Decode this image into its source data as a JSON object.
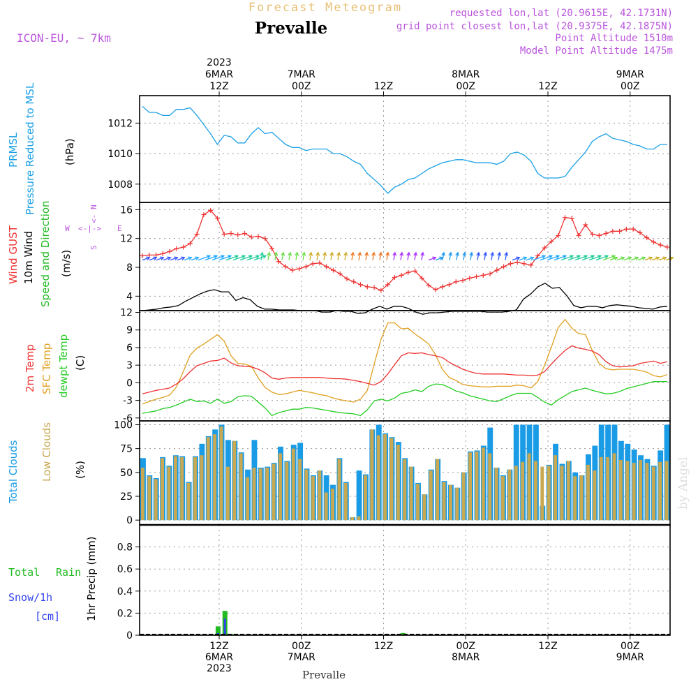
{
  "header": {
    "title_top": "Forecast Meteogram",
    "location": "Prevalle",
    "model": "ICON-EU, ~ 7km",
    "requested": "requested lon,lat (20.9615E, 42.1731N)",
    "grid_point": "grid point closest lon,lat (20.9375E, 42.1875N)",
    "point_altitude": "Point Altitude 1510m",
    "model_altitude": "Model Point Altitude 1475m",
    "footer_location": "Prevalle",
    "watermark": "by Angel"
  },
  "colors": {
    "prmsl": "#1aa0e6",
    "gust": "#ee3333",
    "wind": "#000000",
    "dir": "#22bb22",
    "t2m": "#ee3333",
    "sfc": "#e0a020",
    "dew": "#22cc22",
    "total_clouds": "#1a9be6",
    "low_clouds": "#c8a850",
    "rain": "#22bb22",
    "snow": "#3344ee",
    "compass": "#bb55dd",
    "meta": "#bb55dd",
    "title_top": "#e8c078"
  },
  "time_axis": {
    "top_labels": [
      {
        "lines": [
          "2023",
          "6MAR",
          "12Z"
        ]
      },
      {
        "lines": [
          "7MAR",
          "00Z"
        ]
      },
      {
        "lines": [
          "12Z"
        ]
      },
      {
        "lines": [
          "8MAR",
          "00Z"
        ]
      },
      {
        "lines": [
          "12Z"
        ]
      },
      {
        "lines": [
          "9MAR",
          "00Z"
        ]
      }
    ],
    "bottom_labels": [
      {
        "lines": [
          "12Z",
          "6MAR",
          "2023"
        ]
      },
      {
        "lines": [
          "00Z",
          "7MAR"
        ]
      },
      {
        "lines": [
          "12Z"
        ]
      },
      {
        "lines": [
          "00Z",
          "8MAR"
        ]
      },
      {
        "lines": [
          "12Z"
        ]
      },
      {
        "lines": [
          "00Z",
          "9MAR"
        ]
      }
    ]
  },
  "panel_labels": {
    "p1": [
      "PRMSL",
      "Pressure Reduced to MSL",
      "(hPa)"
    ],
    "p2": [
      "Wind GUST",
      "10m Wind",
      "Speed and Direction",
      "(m/s)"
    ],
    "p3": [
      "2m Temp",
      "SFC Temp",
      "dewpt Temp",
      "(C)"
    ],
    "p4": [
      "Total Clouds",
      "Low Clouds",
      "(%)"
    ],
    "p5": [
      "Total",
      "Rain",
      "Snow/1h",
      "[cm]",
      "1hr Precip (mm)"
    ]
  },
  "compass": {
    "n": "N",
    "s": "S",
    "w": "W",
    "e": "E",
    "arrow_ns": "<-",
    "arrow_we": "<-|->"
  },
  "chart_data": [
    {
      "type": "line",
      "title": "PRMSL",
      "ylabel": "Pressure Reduced to MSL (hPa)",
      "ylim": [
        1006.8,
        1013.8
      ],
      "yticks": [
        1008,
        1010,
        1012
      ],
      "x_hours_from_start": "hourly steps, 0 to 64",
      "series": [
        {
          "name": "PRMSL",
          "values": [
            1013.1,
            1012.7,
            1012.7,
            1012.5,
            1012.5,
            1012.9,
            1012.9,
            1013.0,
            1012.5,
            1011.9,
            1011.3,
            1010.6,
            1011.2,
            1011.1,
            1010.7,
            1010.7,
            1011.3,
            1011.7,
            1011.3,
            1011.4,
            1011.0,
            1010.6,
            1010.4,
            1010.4,
            1010.2,
            1010.3,
            1010.3,
            1010.3,
            1010.0,
            1010.0,
            1009.8,
            1009.5,
            1009.3,
            1008.7,
            1008.3,
            1007.9,
            1007.4,
            1007.8,
            1008.0,
            1008.3,
            1008.4,
            1008.7,
            1009.0,
            1009.2,
            1009.4,
            1009.5,
            1009.6,
            1009.6,
            1009.5,
            1009.4,
            1009.4,
            1009.4,
            1009.3,
            1009.5,
            1010.0,
            1010.1,
            1009.9,
            1009.5,
            1008.7,
            1008.4,
            1008.4,
            1008.4,
            1008.5,
            1009.1,
            1009.6,
            1010.1,
            1010.8,
            1011.1,
            1011.3,
            1011.0,
            1010.9,
            1010.8,
            1010.6,
            1010.5,
            1010.3,
            1010.3,
            1010.6,
            1010.6
          ]
        }
      ]
    },
    {
      "type": "line",
      "title": "Wind GUST / 10m Wind Speed and Direction",
      "ylabel": "(m/s)",
      "ylim": [
        2.0,
        17.0
      ],
      "yticks": [
        4,
        8,
        12,
        16
      ],
      "series": [
        {
          "name": "Wind GUST",
          "values": [
            9.6,
            9.7,
            9.7,
            9.9,
            10.2,
            10.6,
            10.8,
            11.3,
            12.6,
            15.3,
            15.9,
            14.8,
            12.6,
            12.7,
            12.5,
            12.7,
            12.2,
            12.3,
            12.0,
            10.6,
            8.8,
            8.1,
            7.6,
            7.8,
            8.1,
            8.5,
            8.6,
            8.1,
            7.6,
            7.1,
            6.4,
            6.0,
            5.6,
            5.3,
            5.2,
            4.8,
            5.6,
            6.6,
            6.9,
            7.3,
            7.5,
            6.5,
            5.5,
            4.9,
            5.3,
            5.6,
            6.0,
            6.2,
            6.5,
            6.7,
            6.9,
            7.1,
            7.6,
            8.1,
            8.5,
            8.7,
            8.5,
            8.3,
            9.6,
            10.7,
            11.6,
            12.4,
            14.9,
            14.8,
            12.4,
            13.9,
            12.6,
            12.4,
            12.7,
            13.0,
            13.0,
            13.3,
            13.3,
            12.8,
            12.1,
            11.5,
            11.1,
            10.8
          ]
        },
        {
          "name": "10m Wind",
          "values": [
            2.0,
            2.1,
            2.2,
            2.4,
            2.5,
            2.7,
            3.3,
            3.8,
            4.3,
            4.7,
            4.9,
            4.6,
            4.6,
            3.4,
            3.8,
            3.5,
            2.6,
            2.2,
            2.2,
            2.1,
            2.1,
            2.1,
            2.0,
            2.0,
            2.0,
            1.8,
            1.8,
            2.0,
            1.9,
            1.9,
            1.6,
            1.7,
            2.2,
            2.6,
            2.2,
            2.6,
            2.6,
            2.3,
            1.8,
            1.5,
            1.7,
            1.7,
            1.8,
            1.9,
            1.9,
            1.9,
            1.9,
            1.9,
            1.8,
            1.8,
            1.8,
            1.9,
            2.1,
            3.6,
            4.3,
            5.3,
            5.8,
            5.1,
            5.2,
            4.1,
            2.7,
            2.4,
            2.6,
            2.6,
            2.4,
            2.7,
            2.8,
            2.7,
            2.6,
            2.4,
            2.3,
            2.2,
            2.5,
            2.6
          ]
        }
      ]
    },
    {
      "type": "line",
      "title": "Temperatures",
      "ylabel": "(C)",
      "ylim": [
        -6.5,
        12.3
      ],
      "yticks": [
        -6,
        -3,
        0,
        3,
        6,
        9,
        12
      ],
      "series": [
        {
          "name": "2m Temp",
          "values": [
            -1.9,
            -1.6,
            -1.3,
            -1.1,
            -0.9,
            -0.2,
            0.7,
            1.9,
            2.9,
            3.3,
            3.7,
            3.8,
            4.2,
            3.4,
            2.9,
            2.8,
            2.7,
            2.3,
            1.7,
            0.8,
            0.6,
            0.8,
            0.9,
            0.9,
            0.9,
            0.9,
            0.9,
            0.8,
            0.7,
            0.7,
            0.6,
            0.4,
            0.2,
            -0.1,
            -0.4,
            0.2,
            1.5,
            3.1,
            4.6,
            5.1,
            5.0,
            5.1,
            4.8,
            4.6,
            4.3,
            3.5,
            2.9,
            2.3,
            1.9,
            1.6,
            1.5,
            1.5,
            1.5,
            1.5,
            1.4,
            1.3,
            1.3,
            1.2,
            1.3,
            1.9,
            3.2,
            4.4,
            5.5,
            6.3,
            5.9,
            5.7,
            5.4,
            4.8,
            3.6,
            2.9,
            2.7,
            2.8,
            2.9,
            3.3,
            3.5,
            3.7,
            3.3,
            3.6
          ]
        },
        {
          "name": "SFC Temp",
          "values": [
            -3.6,
            -3.2,
            -2.8,
            -2.5,
            -2.1,
            -0.7,
            1.9,
            4.7,
            5.9,
            6.6,
            7.4,
            8.2,
            7.1,
            4.6,
            3.3,
            3.2,
            2.8,
            0.8,
            -0.8,
            -1.6,
            -2.0,
            -1.9,
            -1.6,
            -1.3,
            -1.5,
            -1.7,
            -2.0,
            -2.2,
            -2.6,
            -2.9,
            -3.1,
            -3.3,
            -2.8,
            -1.3,
            3.2,
            7.4,
            10.2,
            10.2,
            9.2,
            9.3,
            8.3,
            7.5,
            6.6,
            4.8,
            2.3,
            0.9,
            0.4,
            -0.3,
            -0.5,
            -0.6,
            -0.7,
            -0.7,
            -0.6,
            -0.6,
            -0.6,
            -0.4,
            -0.5,
            -0.9,
            0.2,
            3.0,
            6.1,
            9.4,
            10.8,
            9.3,
            8.4,
            8.2,
            5.5,
            3.3,
            2.4,
            2.2,
            2.3,
            2.3,
            2.3,
            2.1,
            1.8,
            1.2,
            1.0,
            1.4
          ]
        },
        {
          "name": "dewpt Temp",
          "values": [
            -5.2,
            -5.0,
            -4.8,
            -4.4,
            -4.2,
            -3.8,
            -3.3,
            -2.8,
            -3.2,
            -3.1,
            -3.5,
            -2.8,
            -3.5,
            -3.2,
            -2.4,
            -2.2,
            -2.3,
            -3.3,
            -4.3,
            -5.6,
            -5.1,
            -4.8,
            -4.5,
            -4.5,
            -4.2,
            -4.3,
            -4.5,
            -4.7,
            -4.9,
            -5.1,
            -5.2,
            -5.3,
            -5.6,
            -4.6,
            -3.1,
            -2.8,
            -3.1,
            -2.6,
            -1.8,
            -1.6,
            -1.2,
            -1.5,
            -0.6,
            -0.2,
            -0.3,
            -0.8,
            -1.4,
            -1.7,
            -2.2,
            -2.5,
            -2.8,
            -3.1,
            -3.2,
            -2.7,
            -2.2,
            -1.8,
            -1.8,
            -1.8,
            -2.5,
            -3.3,
            -3.8,
            -2.9,
            -2.2,
            -1.5,
            -1.2,
            -0.9,
            -1.3,
            -1.6,
            -1.9,
            -1.8,
            -1.5,
            -1.0,
            -0.7,
            -0.4,
            -0.1,
            0.2,
            0.2,
            0.2
          ]
        }
      ]
    },
    {
      "type": "bar",
      "title": "Clouds",
      "ylabel": "(%)",
      "ylim": [
        -5,
        104
      ],
      "yticks": [
        0,
        25,
        50,
        75,
        100
      ],
      "series": [
        {
          "name": "Total Clouds",
          "values": [
            65,
            47,
            44,
            66,
            57,
            68,
            67,
            40,
            67,
            80,
            88,
            95,
            100,
            84,
            83,
            71,
            53,
            84,
            55,
            56,
            60,
            77,
            62,
            79,
            81,
            54,
            47,
            52,
            47,
            37,
            65,
            40,
            3,
            52,
            48,
            95,
            100,
            91,
            87,
            82,
            65,
            56,
            39,
            27,
            53,
            64,
            41,
            37,
            34,
            50,
            72,
            73,
            78,
            97,
            55,
            47,
            53,
            100,
            100,
            100,
            100,
            15,
            58,
            80,
            59,
            62,
            50,
            47,
            69,
            78,
            100,
            100,
            100,
            83,
            80,
            74,
            68,
            64,
            57,
            73,
            100
          ]
        },
        {
          "name": "Low Clouds",
          "values": [
            55,
            46,
            43,
            65,
            56,
            67,
            66,
            39,
            66,
            68,
            87,
            90,
            98,
            56,
            83,
            70,
            45,
            55,
            54,
            55,
            59,
            70,
            61,
            75,
            64,
            53,
            46,
            52,
            29,
            33,
            64,
            39,
            3,
            4,
            47,
            95,
            89,
            90,
            86,
            79,
            64,
            56,
            38,
            27,
            52,
            64,
            40,
            37,
            34,
            50,
            71,
            72,
            76,
            70,
            55,
            46,
            53,
            57,
            61,
            70,
            62,
            56,
            57,
            68,
            57,
            62,
            46,
            47,
            58,
            52,
            66,
            66,
            70,
            63,
            62,
            60,
            63,
            60,
            56,
            61,
            62
          ]
        }
      ]
    },
    {
      "type": "bar",
      "title": "Precipitation",
      "ylabel": "1hr Precip (mm)",
      "ylim": [
        0,
        1.0
      ],
      "yticks": [
        0,
        0.2,
        0.4,
        0.6,
        0.8
      ],
      "series": [
        {
          "name": "Total Rain",
          "values": [
            0,
            0,
            0,
            0,
            0,
            0,
            0,
            0,
            0,
            0,
            0.01,
            0.08,
            0.22,
            0.01,
            0,
            0,
            0,
            0,
            0,
            0,
            0,
            0,
            0,
            0,
            0,
            0,
            0,
            0,
            0,
            0,
            0,
            0,
            0,
            0,
            0,
            0,
            0,
            0,
            0.02,
            0,
            0,
            0,
            0,
            0,
            0,
            0,
            0,
            0,
            0,
            0,
            0,
            0,
            0,
            0,
            0,
            0,
            0,
            0,
            0,
            0,
            0,
            0,
            0,
            0,
            0,
            0,
            0,
            0,
            0,
            0,
            0,
            0,
            0,
            0,
            0,
            0,
            0,
            0
          ]
        },
        {
          "name": "Snow/1h",
          "values": [
            0,
            0,
            0,
            0,
            0,
            0,
            0,
            0,
            0,
            0,
            0,
            0.02,
            0.15,
            0,
            0,
            0,
            0,
            0,
            0,
            0,
            0,
            0,
            0,
            0,
            0,
            0,
            0,
            0,
            0,
            0,
            0,
            0,
            0,
            0,
            0,
            0,
            0,
            0,
            0,
            0,
            0,
            0,
            0,
            0,
            0,
            0,
            0,
            0,
            0,
            0,
            0,
            0,
            0,
            0,
            0,
            0,
            0,
            0,
            0,
            0,
            0,
            0,
            0,
            0,
            0,
            0,
            0,
            0,
            0,
            0,
            0,
            0,
            0,
            0,
            0,
            0,
            0,
            0
          ]
        }
      ]
    }
  ]
}
